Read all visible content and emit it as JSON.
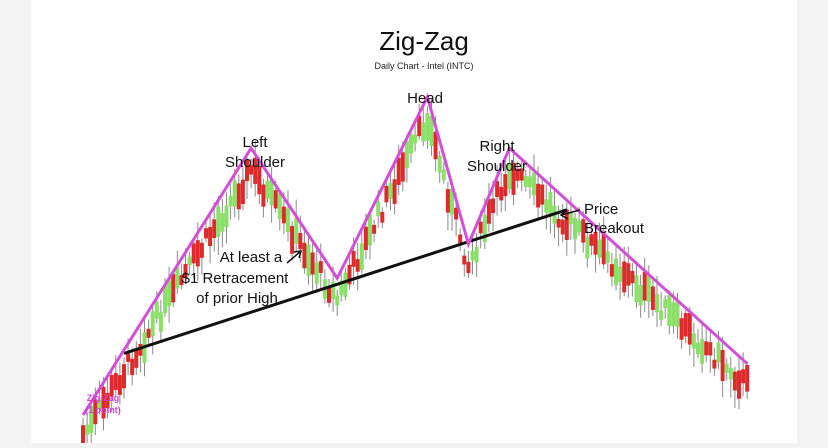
{
  "chart_data": {
    "type": "candlestick",
    "title": "Zig-Zag",
    "subtitle": "Daily Chart - Intel (INTC)",
    "colors": {
      "up": "#8be06a",
      "down": "#dd2b2b",
      "wick": "#8a8a8a",
      "zigzag": "#d34fd8",
      "neckline": "#111111",
      "zigzag_label": "#cf3fd2"
    },
    "annotations": {
      "head": "Head",
      "left_shoulder": [
        "Left",
        "Shoulder"
      ],
      "right_shoulder": [
        "Right",
        "Shoulder"
      ],
      "breakout": [
        "Price",
        "Breakout"
      ],
      "retracement": [
        "At least a",
        "$1 Retracement",
        "of prior High"
      ],
      "zigzag_label": [
        "Zig-Zag",
        "(1 point)"
      ]
    },
    "zigzag_pivots": [
      {
        "bar": 0,
        "price": 0.0
      },
      {
        "bar": 41,
        "price": 7.8
      },
      {
        "bar": 62,
        "price": 4.0
      },
      {
        "bar": 84,
        "price": 9.3
      },
      {
        "bar": 94,
        "price": 5.0
      },
      {
        "bar": 104,
        "price": 7.8
      },
      {
        "bar": 162,
        "price": 1.5
      }
    ],
    "neckline": [
      {
        "bar": 10,
        "price": 1.8
      },
      {
        "bar": 118,
        "price": 6.0
      }
    ]
  }
}
